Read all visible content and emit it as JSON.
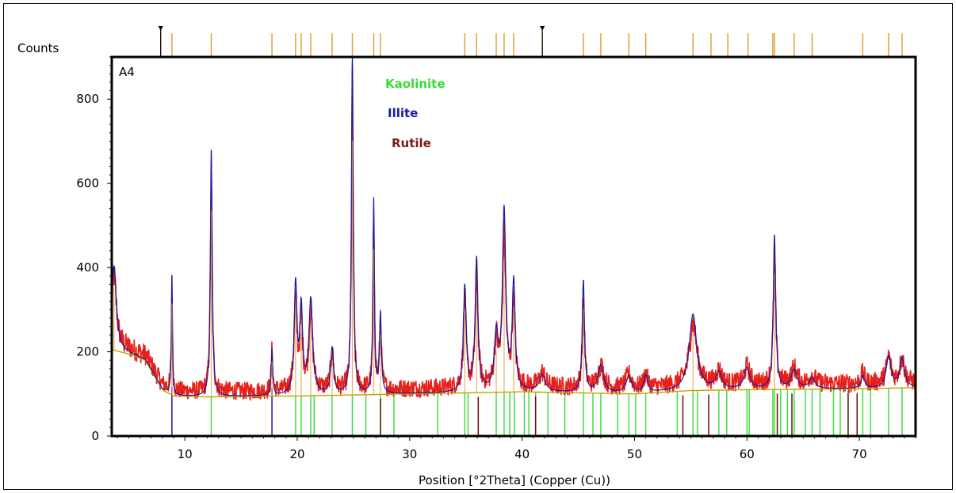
{
  "chart_data": {
    "type": "line",
    "sample_label": "A4",
    "xlabel": "Position [°2Theta] (Copper (Cu))",
    "ylabel": "Counts",
    "xlim": [
      3.5,
      75
    ],
    "ylim": [
      0,
      900
    ],
    "x_ticks": [
      10,
      20,
      30,
      40,
      50,
      60,
      70
    ],
    "y_ticks": [
      0,
      200,
      400,
      600,
      800
    ],
    "legend": [
      {
        "name": "Kaolinite",
        "color": "#33dd33"
      },
      {
        "name": "Illite",
        "color": "#1a1aa6"
      },
      {
        "name": "Rutile",
        "color": "#7a1a1a"
      }
    ],
    "series_colors": {
      "observed": "#e8201a",
      "calculated": "#1a1a9c",
      "background": "#c8a000",
      "peak_markers": "#e0a040"
    },
    "background_points": [
      [
        3.5,
        205
      ],
      [
        5,
        195
      ],
      [
        6.5,
        180
      ],
      [
        8,
        110
      ],
      [
        9,
        95
      ],
      [
        12,
        93
      ],
      [
        20,
        95
      ],
      [
        30,
        100
      ],
      [
        40,
        105
      ],
      [
        50,
        100
      ],
      [
        55,
        108
      ],
      [
        60,
        110
      ],
      [
        70,
        112
      ],
      [
        75,
        115
      ]
    ],
    "peaks": [
      {
        "x": 3.7,
        "height": 200,
        "width": 0.25
      },
      {
        "x": 8.85,
        "height": 290,
        "width": 0.06
      },
      {
        "x": 12.35,
        "height": 590,
        "width": 0.1
      },
      {
        "x": 17.75,
        "height": 110,
        "width": 0.08
      },
      {
        "x": 19.85,
        "height": 260,
        "width": 0.15
      },
      {
        "x": 20.35,
        "height": 200,
        "width": 0.15
      },
      {
        "x": 21.2,
        "height": 225,
        "width": 0.2
      },
      {
        "x": 23.1,
        "height": 110,
        "width": 0.15
      },
      {
        "x": 24.9,
        "height": 805,
        "width": 0.1
      },
      {
        "x": 26.8,
        "height": 460,
        "width": 0.08
      },
      {
        "x": 27.4,
        "height": 190,
        "width": 0.1
      },
      {
        "x": 34.9,
        "height": 250,
        "width": 0.15
      },
      {
        "x": 35.95,
        "height": 315,
        "width": 0.15
      },
      {
        "x": 37.7,
        "height": 130,
        "width": 0.2
      },
      {
        "x": 38.4,
        "height": 425,
        "width": 0.18
      },
      {
        "x": 39.25,
        "height": 255,
        "width": 0.15
      },
      {
        "x": 41.8,
        "height": 40,
        "width": 0.3
      },
      {
        "x": 45.45,
        "height": 265,
        "width": 0.12
      },
      {
        "x": 47.0,
        "height": 65,
        "width": 0.3
      },
      {
        "x": 49.5,
        "height": 40,
        "width": 0.3
      },
      {
        "x": 51.0,
        "height": 40,
        "width": 0.2
      },
      {
        "x": 55.2,
        "height": 180,
        "width": 0.4
      },
      {
        "x": 57.5,
        "height": 40,
        "width": 0.3
      },
      {
        "x": 60.0,
        "height": 50,
        "width": 0.3
      },
      {
        "x": 62.45,
        "height": 365,
        "width": 0.13
      },
      {
        "x": 64.2,
        "height": 45,
        "width": 0.3
      },
      {
        "x": 65.8,
        "height": 25,
        "width": 0.3
      },
      {
        "x": 70.3,
        "height": 30,
        "width": 0.2
      },
      {
        "x": 72.6,
        "height": 75,
        "width": 0.25
      },
      {
        "x": 73.8,
        "height": 70,
        "width": 0.25
      }
    ],
    "kaolinite_lines": [
      12.35,
      19.85,
      20.35,
      21.2,
      21.5,
      23.1,
      24.9,
      26.1,
      27.4,
      28.6,
      32.5,
      34.9,
      35.2,
      37.7,
      38.4,
      38.9,
      39.3,
      40.2,
      40.6,
      41.2,
      42.3,
      43.8,
      45.45,
      46.3,
      47.0,
      48.5,
      49.5,
      50.1,
      51.0,
      53.8,
      55.2,
      55.6,
      57.5,
      58.2,
      60.0,
      60.2,
      62.3,
      62.45,
      63.0,
      63.6,
      64.2,
      65.2,
      65.8,
      66.5,
      67.7,
      68.3,
      69.0,
      70.3,
      71.0,
      72.6,
      73.8
    ],
    "illite_lines": [
      8.85,
      17.75
    ],
    "rutile_lines": [
      27.4,
      36.1,
      41.2,
      54.3,
      56.6,
      62.7,
      64.0,
      69.0,
      69.8
    ],
    "reference_ticks_top": [
      7.85,
      8.85,
      12.35,
      17.75,
      19.85,
      20.35,
      21.2,
      23.1,
      24.9,
      26.8,
      27.4,
      34.9,
      35.95,
      37.7,
      38.4,
      39.25,
      41.8,
      45.45,
      47.0,
      49.5,
      51.0,
      55.2,
      56.8,
      58.3,
      60.1,
      62.3,
      62.45,
      64.2,
      65.8,
      70.3,
      72.6,
      73.8
    ],
    "top_markers": [
      7.85,
      41.8
    ]
  }
}
